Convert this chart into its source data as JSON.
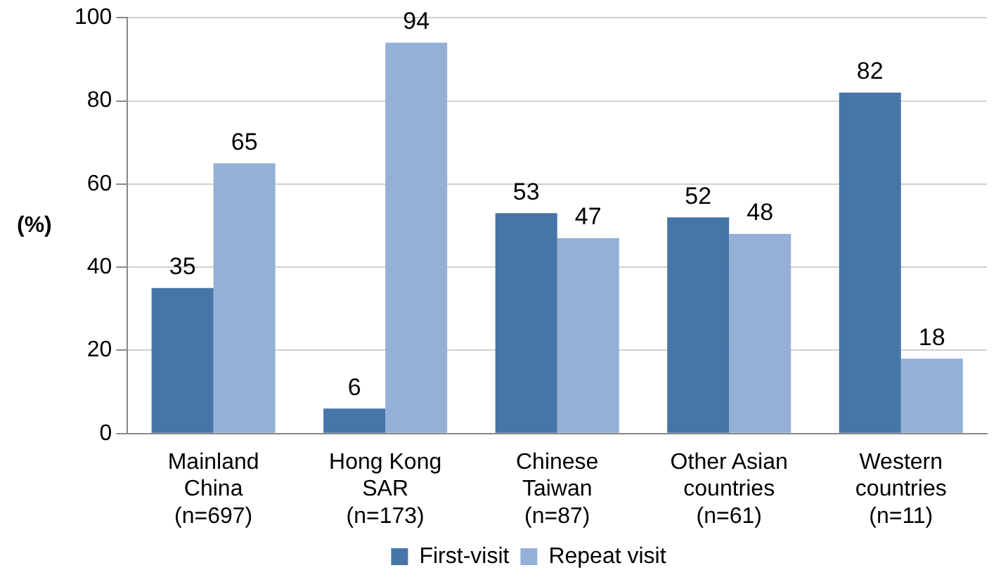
{
  "chart_data": {
    "type": "bar",
    "ylabel": "(%)",
    "categories": [
      "Mainland\nChina\n(n=697)",
      "Hong Kong\nSAR\n(n=173)",
      "Chinese\nTaiwan\n(n=87)",
      "Other Asian\ncountries\n(n=61)",
      "Western\ncountries\n(n=11)"
    ],
    "series": [
      {
        "name": "First-visit",
        "color": "#4675a8",
        "values": [
          35,
          6,
          53,
          52,
          82
        ]
      },
      {
        "name": "Repeat visit",
        "color": "#95b0d7",
        "values": [
          65,
          94,
          47,
          48,
          18
        ]
      }
    ],
    "ylim": [
      0,
      100
    ],
    "yticks": [
      0,
      20,
      40,
      60,
      80,
      100
    ],
    "grid": "y",
    "legend": "bottom",
    "data_labels": true
  }
}
